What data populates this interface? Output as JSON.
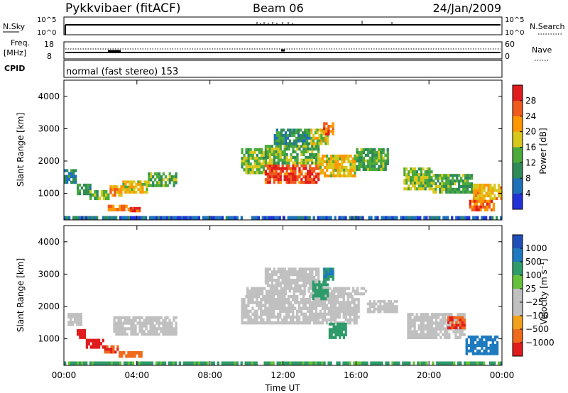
{
  "header": {
    "station": "Pykkvibaer (fitACF)",
    "beam": "Beam 06",
    "date": "24/Jan/2009"
  },
  "top_panels": {
    "nsky_label": "N.Sky",
    "nsky_ticks": [
      "10^5",
      "10^0"
    ],
    "nsearch_label": "N.Search",
    "nsearch_ticks": [
      "10^5",
      "10^0"
    ],
    "freq_label": "Freq.",
    "freq_unit": "[MHz]",
    "freq_ticks": [
      "18",
      "8"
    ],
    "nave_label": "Nave",
    "nave_ticks": [
      "60",
      "0"
    ],
    "cpid_label": "CPID",
    "cpid_text": "normal (fast stereo) 153"
  },
  "colors": {
    "power_scale": [
      "#2232d8",
      "#1e70b8",
      "#2e8b57",
      "#4aaa3a",
      "#d8c81c",
      "#ff9800",
      "#f05a1c",
      "#e01c1c"
    ],
    "velocity_scale": [
      "#1e4fb8",
      "#1e7abf",
      "#2e9b6a",
      "#66c23a",
      "#c0c0c0",
      "#c0c0c0",
      "#f2a21c",
      "#f06a1c",
      "#e01c1c"
    ]
  },
  "chart_data": [
    {
      "type": "heatmap",
      "title": "Power",
      "ylabel": "Slant Range [km]",
      "xlabel": "Time UT",
      "x_ticks": [
        "00:00",
        "04:00",
        "08:00",
        "12:00",
        "16:00",
        "20:00",
        "00:00"
      ],
      "xlim_hours": [
        0,
        24
      ],
      "y_ticks": [
        "1000",
        "2000",
        "3000",
        "4000"
      ],
      "ylim": [
        180,
        4500
      ],
      "colorbar": {
        "label": "Power [dB]",
        "ticks": [
          "4",
          "8",
          "12",
          "16",
          "20",
          "24",
          "28"
        ],
        "range": [
          0,
          30
        ]
      },
      "regions": [
        {
          "t": [
            0.0,
            4.2
          ],
          "r": [
            180,
            300
          ],
          "value": 6
        },
        {
          "t": [
            4.2,
            24.0
          ],
          "r": [
            180,
            300
          ],
          "value": 5
        },
        {
          "t": [
            0.0,
            0.7
          ],
          "r": [
            1300,
            1750
          ],
          "value": 8
        },
        {
          "t": [
            0.7,
            1.5
          ],
          "r": [
            950,
            1300
          ],
          "value": 11
        },
        {
          "t": [
            1.4,
            2.5
          ],
          "r": [
            800,
            1100
          ],
          "value": 14
        },
        {
          "t": [
            2.5,
            3.2
          ],
          "r": [
            900,
            1250
          ],
          "value": 20
        },
        {
          "t": [
            3.2,
            4.6
          ],
          "r": [
            1000,
            1400
          ],
          "value": 17
        },
        {
          "t": [
            4.6,
            6.2
          ],
          "r": [
            1200,
            1650
          ],
          "value": 13
        },
        {
          "t": [
            2.4,
            3.6
          ],
          "r": [
            450,
            650
          ],
          "value": 22
        },
        {
          "t": [
            3.6,
            4.2
          ],
          "r": [
            420,
            580
          ],
          "value": 26
        },
        {
          "t": [
            9.7,
            11.0
          ],
          "r": [
            1600,
            2400
          ],
          "value": 14
        },
        {
          "t": [
            11.0,
            14.0
          ],
          "r": [
            1300,
            1900
          ],
          "value": 26
        },
        {
          "t": [
            11.0,
            14.0
          ],
          "r": [
            1900,
            2500
          ],
          "value": 13
        },
        {
          "t": [
            14.0,
            16.0
          ],
          "r": [
            1500,
            2200
          ],
          "value": 18
        },
        {
          "t": [
            11.5,
            13.5
          ],
          "r": [
            2500,
            3000
          ],
          "value": 10
        },
        {
          "t": [
            13.5,
            14.5
          ],
          "r": [
            2500,
            3000
          ],
          "value": 16
        },
        {
          "t": [
            14.2,
            14.8
          ],
          "r": [
            2800,
            3200
          ],
          "value": 24
        },
        {
          "t": [
            16.0,
            17.8
          ],
          "r": [
            1700,
            2400
          ],
          "value": 12
        },
        {
          "t": [
            18.6,
            20.2
          ],
          "r": [
            1100,
            1800
          ],
          "value": 14
        },
        {
          "t": [
            20.2,
            22.4
          ],
          "r": [
            1000,
            1600
          ],
          "value": 12
        },
        {
          "t": [
            22.4,
            24.0
          ],
          "r": [
            800,
            1300
          ],
          "value": 19
        },
        {
          "t": [
            22.2,
            23.6
          ],
          "r": [
            450,
            800
          ],
          "value": 24
        }
      ]
    },
    {
      "type": "heatmap",
      "title": "Velocity",
      "ylabel": "Slant Range [km]",
      "xlabel": "Time UT",
      "x_ticks": [
        "00:00",
        "04:00",
        "08:00",
        "12:00",
        "16:00",
        "20:00",
        "00:00"
      ],
      "xlim_hours": [
        0,
        24
      ],
      "y_ticks": [
        "1000",
        "2000",
        "3000",
        "4000"
      ],
      "ylim": [
        180,
        4500
      ],
      "colorbar": {
        "label": "Velocity [m s⁻¹]",
        "ticks": [
          "1000",
          "500",
          "100",
          "25",
          "−25",
          "−100",
          "−500",
          "−1000"
        ]
      },
      "regions": [
        {
          "t": [
            0.0,
            24.0
          ],
          "r": [
            180,
            300
          ],
          "value": 80
        },
        {
          "t": [
            0.2,
            1.0
          ],
          "r": [
            1400,
            1800
          ],
          "value": 0
        },
        {
          "t": [
            0.7,
            1.2
          ],
          "r": [
            1000,
            1300
          ],
          "value": -600
        },
        {
          "t": [
            1.2,
            2.2
          ],
          "r": [
            700,
            1000
          ],
          "value": -800
        },
        {
          "t": [
            2.2,
            3.0
          ],
          "r": [
            550,
            800
          ],
          "value": -300
        },
        {
          "t": [
            3.0,
            4.3
          ],
          "r": [
            420,
            620
          ],
          "value": -150
        },
        {
          "t": [
            2.7,
            6.2
          ],
          "r": [
            1100,
            1700
          ],
          "value": 0
        },
        {
          "t": [
            9.7,
            16.2
          ],
          "r": [
            1450,
            2350
          ],
          "value": 0
        },
        {
          "t": [
            10.0,
            16.6
          ],
          "r": [
            2350,
            2600
          ],
          "value": 0
        },
        {
          "t": [
            11.0,
            14.0
          ],
          "r": [
            2600,
            3200
          ],
          "value": 0
        },
        {
          "t": [
            14.2,
            14.8
          ],
          "r": [
            2800,
            3200
          ],
          "value": 300
        },
        {
          "t": [
            13.6,
            14.5
          ],
          "r": [
            2200,
            2800
          ],
          "value": 200
        },
        {
          "t": [
            14.5,
            15.5
          ],
          "r": [
            1000,
            1500
          ],
          "value": 200
        },
        {
          "t": [
            16.6,
            18.3
          ],
          "r": [
            1800,
            2200
          ],
          "value": 0
        },
        {
          "t": [
            18.8,
            22.0
          ],
          "r": [
            1000,
            1800
          ],
          "value": 0
        },
        {
          "t": [
            21.0,
            22.0
          ],
          "r": [
            1300,
            1700
          ],
          "value": -300
        },
        {
          "t": [
            22.0,
            23.8
          ],
          "r": [
            500,
            1100
          ],
          "value": 500
        }
      ]
    }
  ]
}
